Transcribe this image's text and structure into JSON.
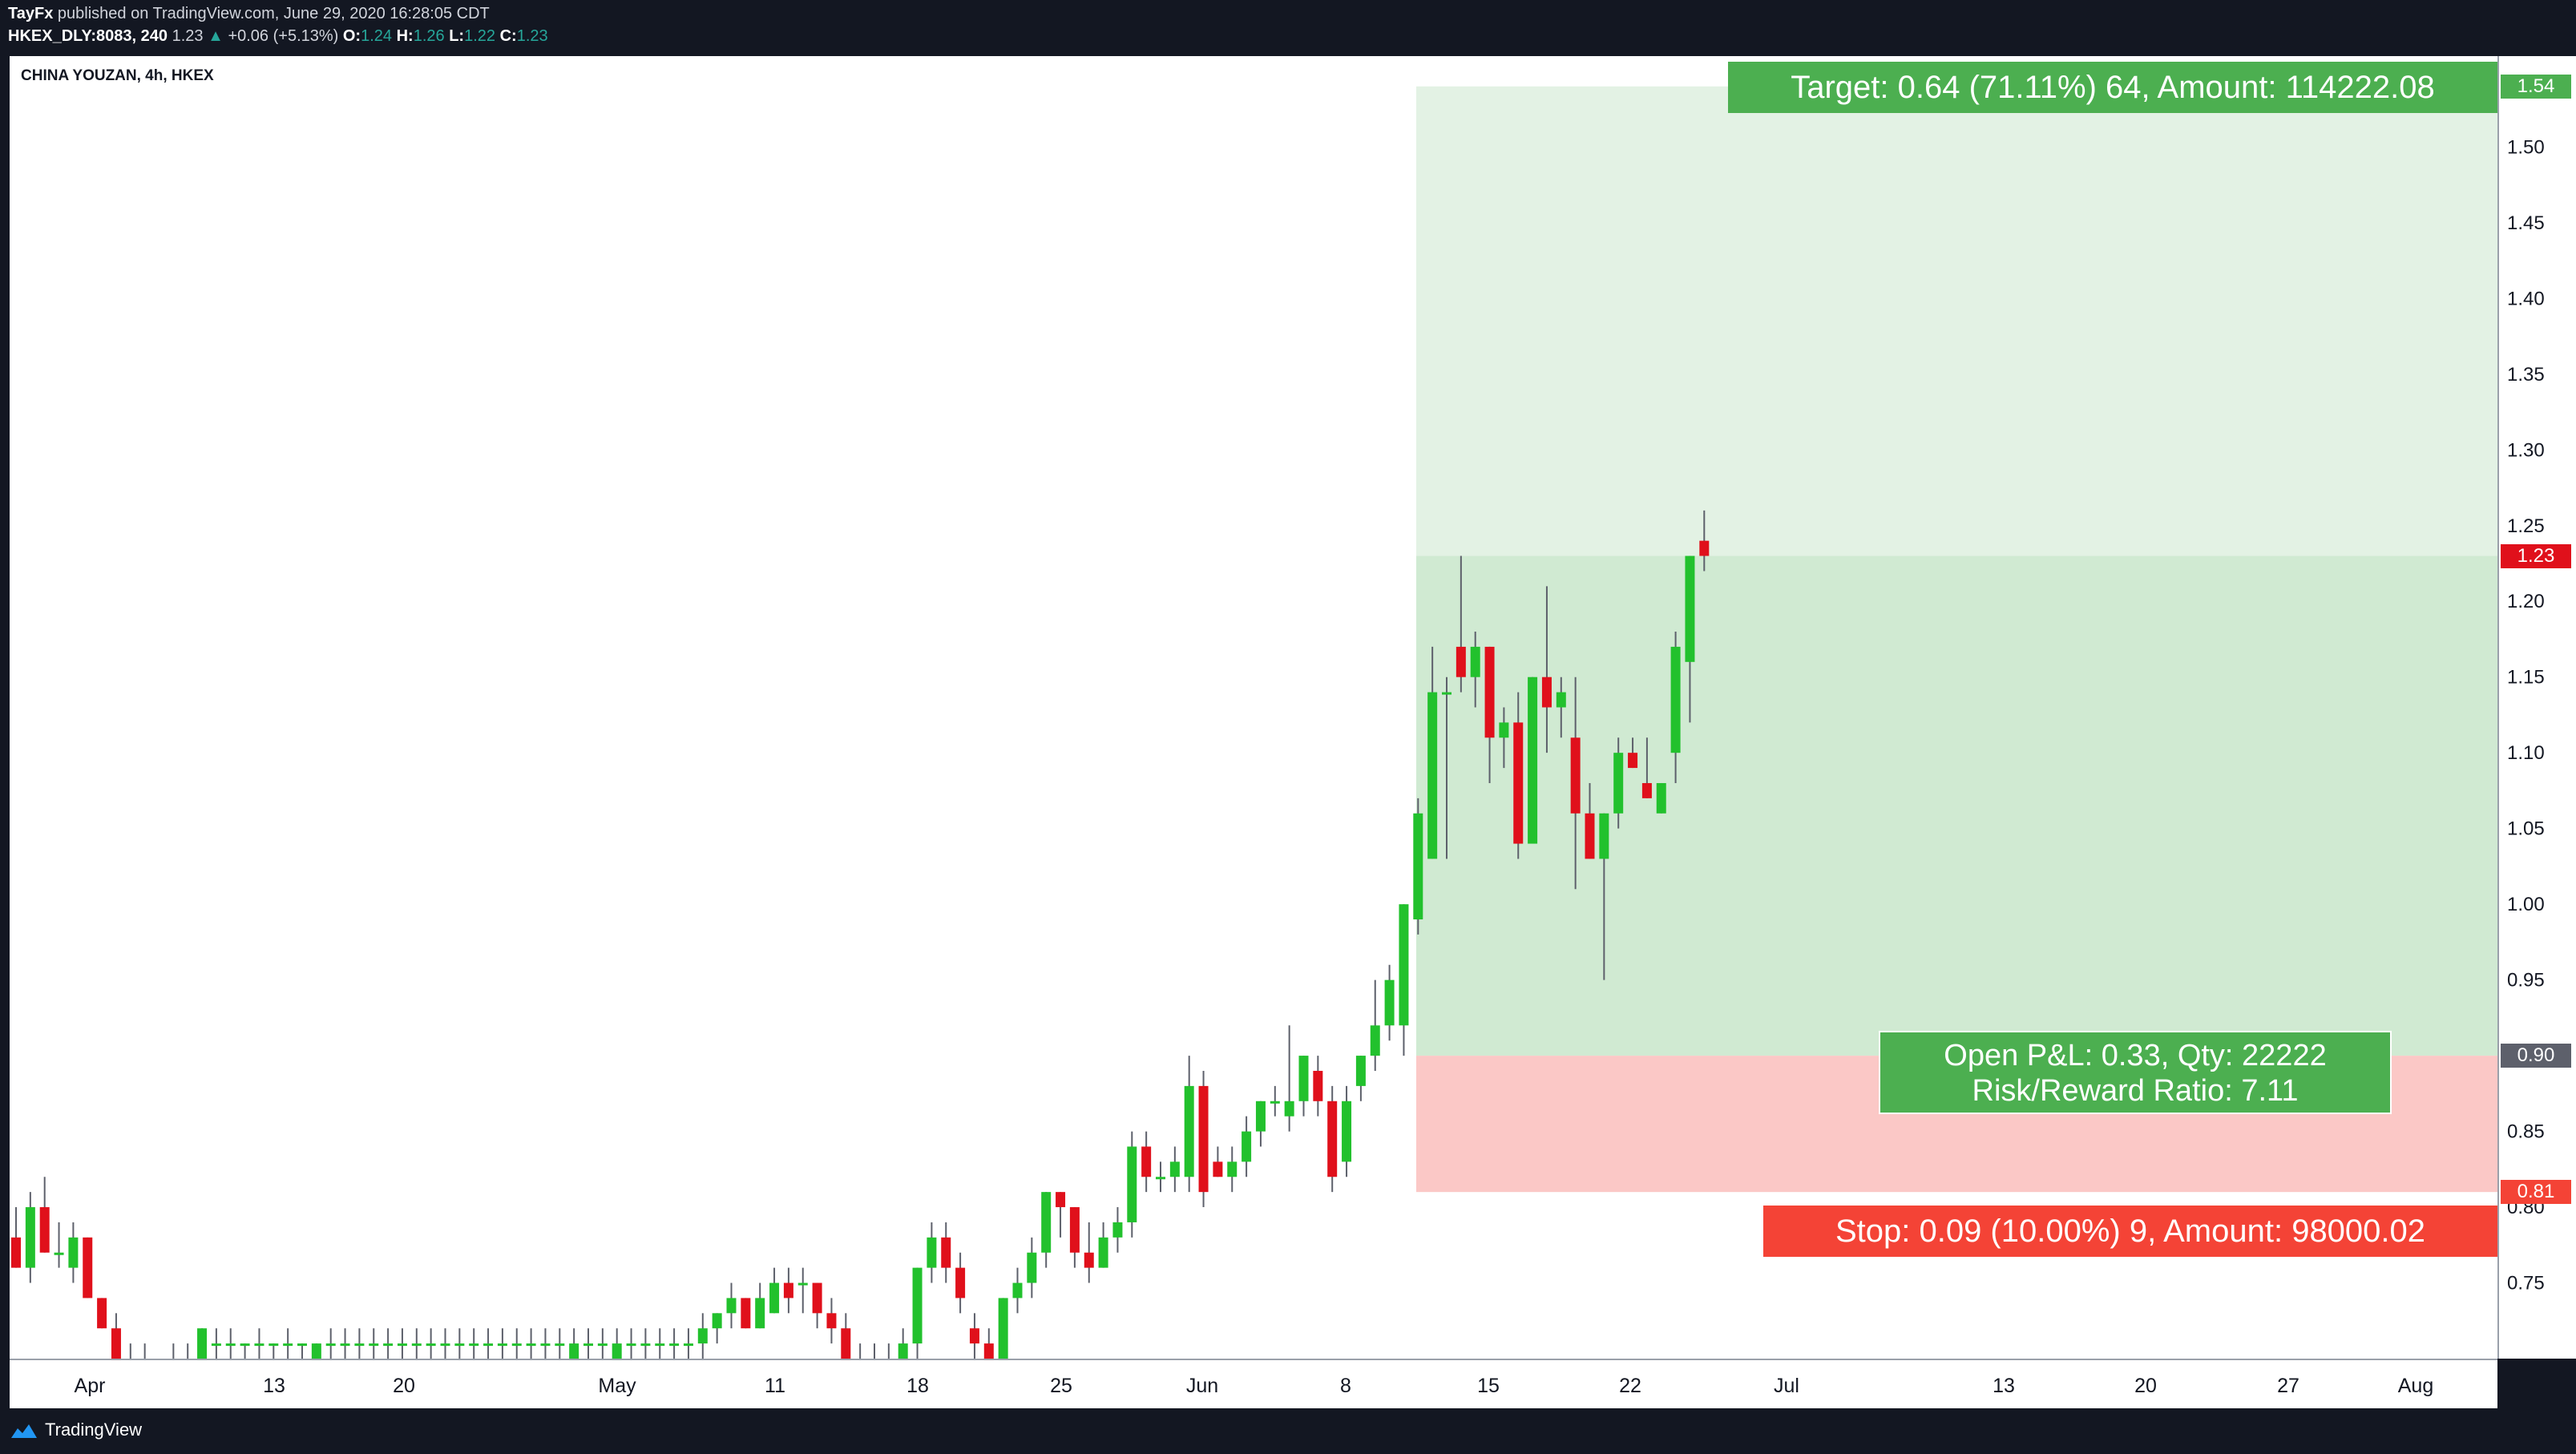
{
  "header": {
    "author": "TayFx",
    "published_text": "published on TradingView.com, June 29, 2020 16:28:05 CDT",
    "symbol_interval": "HKEX_DLY:8083, 240",
    "last": "1.23",
    "change": "+0.06 (+5.13%)",
    "o_label": "O:",
    "o_value": "1.24",
    "h_label": "H:",
    "h_value": "1.26",
    "l_label": "L:",
    "l_value": "1.22",
    "c_label": "C:",
    "c_value": "1.23"
  },
  "chart_title": "CHINA YOUZAN, 4h, HKEX",
  "position": {
    "target_text": "Target: 0.64 (71.11%) 64, Amount: 114222.08",
    "pnl_text": "Open P&L: 0.33, Qty: 22222",
    "rr_text": "Risk/Reward Ratio: 7.11",
    "stop_text": "Stop: 0.09 (10.00%) 9, Amount: 98000.02",
    "target_price": 1.54,
    "entry_price": 0.9,
    "stop_price": 0.81,
    "current_price": 1.23,
    "target_label": "1.54",
    "entry_label": "0.90",
    "stop_label": "0.81",
    "current_label": "1.23"
  },
  "colors": {
    "up": "#22c12d",
    "down": "#e0101b",
    "profit_zone": "#e3f2e4",
    "position_zone": "#d0ead2",
    "stop_zone": "#fbc8c6",
    "target_green": "#4caf50",
    "stop_red": "#f44336",
    "last_price_red": "#e0101b",
    "entry_gray": "#5d606b",
    "header_up": "#26a69a"
  },
  "footer": {
    "brand": "TradingView"
  },
  "chart_data": {
    "type": "candlestick",
    "title": "CHINA YOUZAN, 4h, HKEX",
    "ylim": [
      0.7,
      1.56
    ],
    "y_ticks": [
      0.75,
      0.8,
      0.85,
      0.9,
      0.95,
      1.0,
      1.05,
      1.1,
      1.15,
      1.2,
      1.25,
      1.3,
      1.35,
      1.4,
      1.45,
      1.5
    ],
    "y_tick_labels": [
      "0.75",
      "0.80",
      "0.85",
      "0.90",
      "0.95",
      "1.00",
      "1.05",
      "1.10",
      "1.15",
      "1.20",
      "1.25",
      "1.30",
      "1.35",
      "1.40",
      "1.45",
      "1.50"
    ],
    "x_ticks": [
      "Apr",
      "13",
      "20",
      "May",
      "11",
      "18",
      "25",
      "Jun",
      "8",
      "15",
      "22",
      "Jul",
      "13",
      "20",
      "27",
      "Aug"
    ],
    "candles": [
      {
        "o": 0.78,
        "h": 0.8,
        "l": 0.76,
        "c": 0.76
      },
      {
        "o": 0.76,
        "h": 0.81,
        "l": 0.75,
        "c": 0.8
      },
      {
        "o": 0.8,
        "h": 0.82,
        "l": 0.77,
        "c": 0.77
      },
      {
        "o": 0.77,
        "h": 0.79,
        "l": 0.76,
        "c": 0.77
      },
      {
        "o": 0.76,
        "h": 0.79,
        "l": 0.75,
        "c": 0.78
      },
      {
        "o": 0.78,
        "h": 0.78,
        "l": 0.74,
        "c": 0.74
      },
      {
        "o": 0.74,
        "h": 0.74,
        "l": 0.72,
        "c": 0.72
      },
      {
        "o": 0.72,
        "h": 0.73,
        "l": 0.7,
        "c": 0.7
      },
      {
        "o": 0.7,
        "h": 0.71,
        "l": 0.69,
        "c": 0.7
      },
      {
        "o": 0.7,
        "h": 0.71,
        "l": 0.7,
        "c": 0.7
      },
      {
        "o": 0.7,
        "h": 0.7,
        "l": 0.69,
        "c": 0.7
      },
      {
        "o": 0.7,
        "h": 0.71,
        "l": 0.7,
        "c": 0.7
      },
      {
        "o": 0.7,
        "h": 0.71,
        "l": 0.69,
        "c": 0.7
      },
      {
        "o": 0.7,
        "h": 0.72,
        "l": 0.7,
        "c": 0.72
      },
      {
        "o": 0.71,
        "h": 0.72,
        "l": 0.7,
        "c": 0.71
      },
      {
        "o": 0.71,
        "h": 0.72,
        "l": 0.7,
        "c": 0.71
      },
      {
        "o": 0.71,
        "h": 0.71,
        "l": 0.7,
        "c": 0.71
      },
      {
        "o": 0.71,
        "h": 0.72,
        "l": 0.7,
        "c": 0.71
      },
      {
        "o": 0.71,
        "h": 0.71,
        "l": 0.7,
        "c": 0.71
      },
      {
        "o": 0.71,
        "h": 0.72,
        "l": 0.7,
        "c": 0.71
      },
      {
        "o": 0.71,
        "h": 0.71,
        "l": 0.7,
        "c": 0.71
      },
      {
        "o": 0.7,
        "h": 0.71,
        "l": 0.7,
        "c": 0.71
      },
      {
        "o": 0.71,
        "h": 0.72,
        "l": 0.7,
        "c": 0.71
      },
      {
        "o": 0.71,
        "h": 0.72,
        "l": 0.7,
        "c": 0.71
      },
      {
        "o": 0.71,
        "h": 0.72,
        "l": 0.7,
        "c": 0.71
      },
      {
        "o": 0.71,
        "h": 0.72,
        "l": 0.7,
        "c": 0.71
      },
      {
        "o": 0.71,
        "h": 0.72,
        "l": 0.7,
        "c": 0.71
      },
      {
        "o": 0.71,
        "h": 0.72,
        "l": 0.7,
        "c": 0.71
      },
      {
        "o": 0.71,
        "h": 0.72,
        "l": 0.7,
        "c": 0.71
      },
      {
        "o": 0.71,
        "h": 0.72,
        "l": 0.7,
        "c": 0.71
      },
      {
        "o": 0.71,
        "h": 0.72,
        "l": 0.7,
        "c": 0.71
      },
      {
        "o": 0.71,
        "h": 0.72,
        "l": 0.7,
        "c": 0.71
      },
      {
        "o": 0.71,
        "h": 0.72,
        "l": 0.7,
        "c": 0.71
      },
      {
        "o": 0.71,
        "h": 0.72,
        "l": 0.7,
        "c": 0.71
      },
      {
        "o": 0.71,
        "h": 0.72,
        "l": 0.7,
        "c": 0.71
      },
      {
        "o": 0.71,
        "h": 0.72,
        "l": 0.7,
        "c": 0.71
      },
      {
        "o": 0.71,
        "h": 0.72,
        "l": 0.7,
        "c": 0.71
      },
      {
        "o": 0.71,
        "h": 0.72,
        "l": 0.7,
        "c": 0.71
      },
      {
        "o": 0.71,
        "h": 0.72,
        "l": 0.7,
        "c": 0.71
      },
      {
        "o": 0.7,
        "h": 0.72,
        "l": 0.69,
        "c": 0.71
      },
      {
        "o": 0.71,
        "h": 0.72,
        "l": 0.7,
        "c": 0.71
      },
      {
        "o": 0.71,
        "h": 0.72,
        "l": 0.7,
        "c": 0.71
      },
      {
        "o": 0.7,
        "h": 0.72,
        "l": 0.7,
        "c": 0.71
      },
      {
        "o": 0.71,
        "h": 0.72,
        "l": 0.7,
        "c": 0.71
      },
      {
        "o": 0.71,
        "h": 0.72,
        "l": 0.7,
        "c": 0.71
      },
      {
        "o": 0.71,
        "h": 0.72,
        "l": 0.7,
        "c": 0.71
      },
      {
        "o": 0.71,
        "h": 0.72,
        "l": 0.7,
        "c": 0.71
      },
      {
        "o": 0.71,
        "h": 0.72,
        "l": 0.7,
        "c": 0.71
      },
      {
        "o": 0.71,
        "h": 0.73,
        "l": 0.7,
        "c": 0.72
      },
      {
        "o": 0.72,
        "h": 0.73,
        "l": 0.71,
        "c": 0.73
      },
      {
        "o": 0.73,
        "h": 0.75,
        "l": 0.72,
        "c": 0.74
      },
      {
        "o": 0.74,
        "h": 0.74,
        "l": 0.72,
        "c": 0.72
      },
      {
        "o": 0.72,
        "h": 0.75,
        "l": 0.72,
        "c": 0.74
      },
      {
        "o": 0.73,
        "h": 0.76,
        "l": 0.73,
        "c": 0.75
      },
      {
        "o": 0.75,
        "h": 0.76,
        "l": 0.73,
        "c": 0.74
      },
      {
        "o": 0.75,
        "h": 0.76,
        "l": 0.73,
        "c": 0.75
      },
      {
        "o": 0.75,
        "h": 0.75,
        "l": 0.72,
        "c": 0.73
      },
      {
        "o": 0.73,
        "h": 0.74,
        "l": 0.71,
        "c": 0.72
      },
      {
        "o": 0.72,
        "h": 0.73,
        "l": 0.7,
        "c": 0.7
      },
      {
        "o": 0.7,
        "h": 0.71,
        "l": 0.69,
        "c": 0.7
      },
      {
        "o": 0.7,
        "h": 0.71,
        "l": 0.69,
        "c": 0.7
      },
      {
        "o": 0.7,
        "h": 0.71,
        "l": 0.69,
        "c": 0.7
      },
      {
        "o": 0.7,
        "h": 0.72,
        "l": 0.69,
        "c": 0.71
      },
      {
        "o": 0.71,
        "h": 0.76,
        "l": 0.7,
        "c": 0.76
      },
      {
        "o": 0.76,
        "h": 0.79,
        "l": 0.75,
        "c": 0.78
      },
      {
        "o": 0.78,
        "h": 0.79,
        "l": 0.75,
        "c": 0.76
      },
      {
        "o": 0.76,
        "h": 0.77,
        "l": 0.73,
        "c": 0.74
      },
      {
        "o": 0.72,
        "h": 0.73,
        "l": 0.7,
        "c": 0.71
      },
      {
        "o": 0.71,
        "h": 0.72,
        "l": 0.69,
        "c": 0.7
      },
      {
        "o": 0.7,
        "h": 0.74,
        "l": 0.7,
        "c": 0.74
      },
      {
        "o": 0.74,
        "h": 0.76,
        "l": 0.73,
        "c": 0.75
      },
      {
        "o": 0.75,
        "h": 0.78,
        "l": 0.74,
        "c": 0.77
      },
      {
        "o": 0.77,
        "h": 0.81,
        "l": 0.76,
        "c": 0.81
      },
      {
        "o": 0.81,
        "h": 0.81,
        "l": 0.78,
        "c": 0.8
      },
      {
        "o": 0.8,
        "h": 0.8,
        "l": 0.76,
        "c": 0.77
      },
      {
        "o": 0.77,
        "h": 0.79,
        "l": 0.75,
        "c": 0.76
      },
      {
        "o": 0.76,
        "h": 0.79,
        "l": 0.76,
        "c": 0.78
      },
      {
        "o": 0.78,
        "h": 0.8,
        "l": 0.77,
        "c": 0.79
      },
      {
        "o": 0.79,
        "h": 0.85,
        "l": 0.78,
        "c": 0.84
      },
      {
        "o": 0.84,
        "h": 0.85,
        "l": 0.81,
        "c": 0.82
      },
      {
        "o": 0.82,
        "h": 0.83,
        "l": 0.81,
        "c": 0.82
      },
      {
        "o": 0.82,
        "h": 0.84,
        "l": 0.81,
        "c": 0.83
      },
      {
        "o": 0.82,
        "h": 0.9,
        "l": 0.81,
        "c": 0.88
      },
      {
        "o": 0.88,
        "h": 0.89,
        "l": 0.8,
        "c": 0.81
      },
      {
        "o": 0.83,
        "h": 0.84,
        "l": 0.82,
        "c": 0.82
      },
      {
        "o": 0.82,
        "h": 0.84,
        "l": 0.81,
        "c": 0.83
      },
      {
        "o": 0.83,
        "h": 0.86,
        "l": 0.82,
        "c": 0.85
      },
      {
        "o": 0.85,
        "h": 0.87,
        "l": 0.84,
        "c": 0.87
      },
      {
        "o": 0.87,
        "h": 0.88,
        "l": 0.86,
        "c": 0.87
      },
      {
        "o": 0.86,
        "h": 0.92,
        "l": 0.85,
        "c": 0.87
      },
      {
        "o": 0.87,
        "h": 0.9,
        "l": 0.86,
        "c": 0.9
      },
      {
        "o": 0.89,
        "h": 0.9,
        "l": 0.86,
        "c": 0.87
      },
      {
        "o": 0.87,
        "h": 0.88,
        "l": 0.81,
        "c": 0.82
      },
      {
        "o": 0.83,
        "h": 0.88,
        "l": 0.82,
        "c": 0.87
      },
      {
        "o": 0.88,
        "h": 0.9,
        "l": 0.87,
        "c": 0.9
      },
      {
        "o": 0.9,
        "h": 0.95,
        "l": 0.89,
        "c": 0.92
      },
      {
        "o": 0.92,
        "h": 0.96,
        "l": 0.91,
        "c": 0.95
      },
      {
        "o": 0.92,
        "h": 1.0,
        "l": 0.9,
        "c": 1.0
      },
      {
        "o": 0.99,
        "h": 1.07,
        "l": 0.98,
        "c": 1.06
      },
      {
        "o": 1.03,
        "h": 1.17,
        "l": 1.03,
        "c": 1.14
      },
      {
        "o": 1.14,
        "h": 1.15,
        "l": 1.03,
        "c": 1.14
      },
      {
        "o": 1.17,
        "h": 1.23,
        "l": 1.14,
        "c": 1.15
      },
      {
        "o": 1.15,
        "h": 1.18,
        "l": 1.13,
        "c": 1.17
      },
      {
        "o": 1.17,
        "h": 1.17,
        "l": 1.08,
        "c": 1.11
      },
      {
        "o": 1.11,
        "h": 1.13,
        "l": 1.09,
        "c": 1.12
      },
      {
        "o": 1.12,
        "h": 1.14,
        "l": 1.03,
        "c": 1.04
      },
      {
        "o": 1.04,
        "h": 1.15,
        "l": 1.04,
        "c": 1.15
      },
      {
        "o": 1.15,
        "h": 1.21,
        "l": 1.1,
        "c": 1.13
      },
      {
        "o": 1.13,
        "h": 1.15,
        "l": 1.11,
        "c": 1.14
      },
      {
        "o": 1.11,
        "h": 1.15,
        "l": 1.01,
        "c": 1.06
      },
      {
        "o": 1.06,
        "h": 1.08,
        "l": 1.03,
        "c": 1.03
      },
      {
        "o": 1.03,
        "h": 1.06,
        "l": 0.95,
        "c": 1.06
      },
      {
        "o": 1.06,
        "h": 1.11,
        "l": 1.05,
        "c": 1.1
      },
      {
        "o": 1.1,
        "h": 1.11,
        "l": 1.09,
        "c": 1.09
      },
      {
        "o": 1.08,
        "h": 1.11,
        "l": 1.07,
        "c": 1.07
      },
      {
        "o": 1.06,
        "h": 1.08,
        "l": 1.06,
        "c": 1.08
      },
      {
        "o": 1.1,
        "h": 1.18,
        "l": 1.08,
        "c": 1.17
      },
      {
        "o": 1.16,
        "h": 1.23,
        "l": 1.12,
        "c": 1.23
      },
      {
        "o": 1.24,
        "h": 1.26,
        "l": 1.22,
        "c": 1.23
      }
    ]
  }
}
